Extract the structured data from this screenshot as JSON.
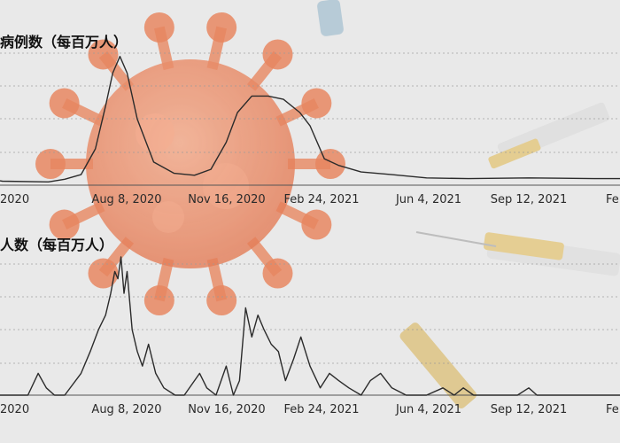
{
  "colors": {
    "line": "#2b2b2b",
    "grid": "#9a9a9a",
    "virus": "#e8774a",
    "background": "#e9e9e9"
  },
  "chart_data": [
    {
      "type": "line",
      "title": "病例数（每百万人）",
      "x_ticks": [
        "2020",
        "Aug 8, 2020",
        "Nov 16, 2020",
        "Feb 24, 2021",
        "Jun 4, 2021",
        "Sep 12, 2021",
        "Fe"
      ],
      "y_ticks": [],
      "grid": true,
      "series": [
        {
          "name": "",
          "x": [
            "2020-03-01",
            "2020-04-15",
            "2020-05-30",
            "2020-06-15",
            "2020-07-01",
            "2020-07-15",
            "2020-07-25",
            "2020-08-01",
            "2020-08-08",
            "2020-08-15",
            "2020-08-25",
            "2020-09-10",
            "2020-09-30",
            "2020-10-20",
            "2020-11-05",
            "2020-11-20",
            "2020-12-01",
            "2020-12-15",
            "2020-12-31",
            "2021-01-15",
            "2021-01-31",
            "2021-02-10",
            "2021-02-24",
            "2021-03-10",
            "2021-04-01",
            "2021-05-01",
            "2021-06-04",
            "2021-07-15",
            "2021-09-12",
            "2021-11-15",
            "2022-01-20"
          ],
          "y": [
            1.8,
            0.6,
            0.5,
            0.9,
            1.6,
            5.5,
            12,
            17,
            19.5,
            17,
            10,
            3.5,
            1.8,
            1.5,
            2.4,
            6.5,
            11,
            13.5,
            13.5,
            13,
            11,
            9,
            4,
            3,
            2,
            1.6,
            1.1,
            1.0,
            1.1,
            1.0,
            1.0
          ]
        }
      ]
    },
    {
      "type": "line",
      "title": "人数（每百万人）",
      "x_ticks": [
        "2020",
        "Aug 8, 2020",
        "Nov 16, 2020",
        "Feb 24, 2021",
        "Jun 4, 2021",
        "Sep 12, 2021",
        "Fe"
      ],
      "y_ticks": [],
      "grid": true,
      "series": [
        {
          "name": "",
          "x": [
            "2020-03-01",
            "2020-04-01",
            "2020-05-10",
            "2020-05-20",
            "2020-05-28",
            "2020-06-05",
            "2020-06-15",
            "2020-07-01",
            "2020-07-10",
            "2020-07-18",
            "2020-07-25",
            "2020-07-30",
            "2020-08-03",
            "2020-08-06",
            "2020-08-09",
            "2020-08-12",
            "2020-08-15",
            "2020-08-20",
            "2020-08-25",
            "2020-08-30",
            "2020-09-05",
            "2020-09-12",
            "2020-09-20",
            "2020-10-01",
            "2020-10-10",
            "2020-10-25",
            "2020-11-01",
            "2020-11-10",
            "2020-11-20",
            "2020-11-27",
            "2020-12-03",
            "2020-12-09",
            "2020-12-15",
            "2020-12-21",
            "2020-12-27",
            "2021-01-03",
            "2021-01-10",
            "2021-01-17",
            "2021-01-25",
            "2021-02-01",
            "2021-02-10",
            "2021-02-20",
            "2021-03-01",
            "2021-03-10",
            "2021-03-20",
            "2021-04-01",
            "2021-04-10",
            "2021-04-20",
            "2021-05-01",
            "2021-05-15",
            "2021-06-04",
            "2021-06-20",
            "2021-07-01",
            "2021-07-10",
            "2021-07-20",
            "2021-08-10",
            "2021-09-01",
            "2021-09-12",
            "2021-09-20",
            "2021-10-01",
            "2021-11-01",
            "2022-01-20"
          ],
          "y": [
            0,
            0,
            0,
            3,
            1,
            0,
            0,
            3,
            6,
            9,
            11,
            14,
            17,
            16,
            19,
            14,
            17,
            9,
            6,
            4,
            7,
            3,
            1,
            0,
            0,
            3,
            1,
            0,
            4,
            0,
            2,
            12,
            8,
            11,
            9,
            7,
            6,
            2,
            5,
            8,
            4,
            1,
            3,
            2,
            1,
            0,
            2,
            3,
            1,
            0,
            0,
            1,
            0,
            1,
            0,
            0,
            0,
            1,
            0,
            0,
            0,
            0
          ]
        }
      ]
    }
  ]
}
